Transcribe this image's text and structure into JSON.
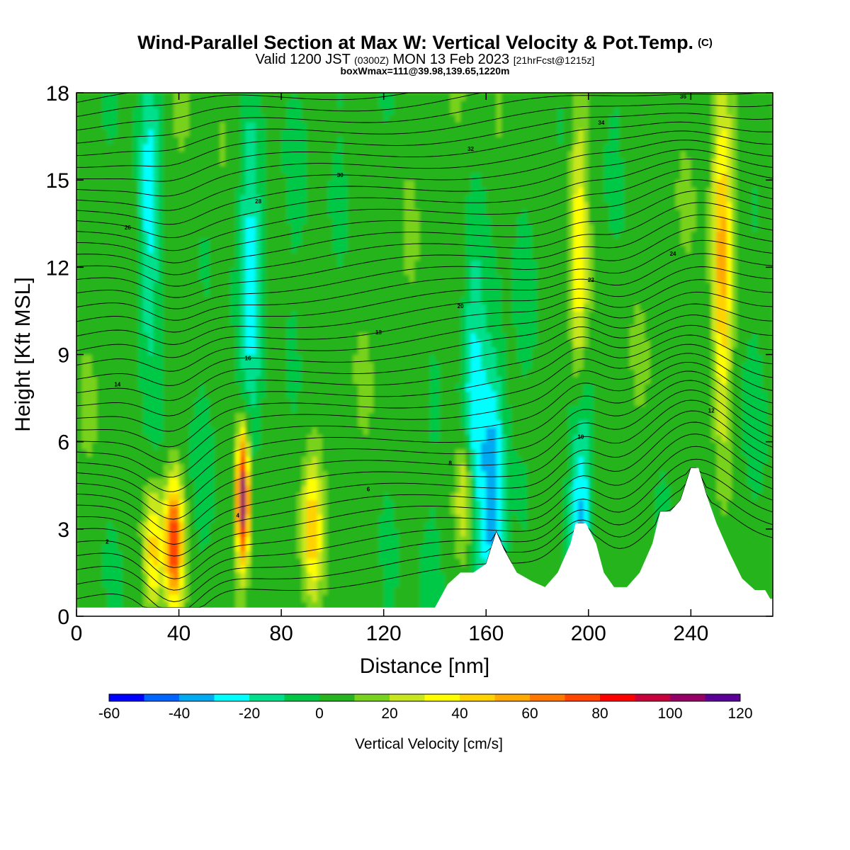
{
  "header": {
    "title": "Wind-Parallel Section at Max W: Vertical Velocity & Pot.Temp.",
    "title_mark": "(C)",
    "valid_prefix": "Valid 1200 JST",
    "valid_zulu": "(0300Z)",
    "valid_date": "MON 13 Feb 2023",
    "forecast_info": "[21hrFcst@1215z]",
    "box_info": "boxWmax=111@39.98,139.65,1220m"
  },
  "chart_data": {
    "type": "heatmap",
    "xlabel": "Distance [nm]",
    "ylabel": "Height [Kft MSL]",
    "xlim": [
      0,
      272
    ],
    "ylim": [
      0,
      18
    ],
    "x_ticks": [
      "0",
      "40",
      "80",
      "120",
      "160",
      "200",
      "240"
    ],
    "y_ticks": [
      "0",
      "3",
      "6",
      "9",
      "12",
      "15",
      "18"
    ],
    "colorbar": {
      "label": "Vertical Velocity [cm/s]",
      "ticks": [
        "-60",
        "-40",
        "-20",
        "0",
        "20",
        "40",
        "60",
        "80",
        "100",
        "120"
      ],
      "min": -60,
      "max": 120,
      "step": 10,
      "colors": [
        "#0000ff",
        "#0064ff",
        "#00aaf0",
        "#00ffff",
        "#00e08c",
        "#00c846",
        "#28b41e",
        "#78d21e",
        "#c8e61e",
        "#ffff00",
        "#ffd200",
        "#ffaa00",
        "#ff7800",
        "#ff4600",
        "#ff0000",
        "#c8003c",
        "#960064",
        "#5a0096"
      ]
    },
    "terrain_kft": [
      [
        0,
        0.3
      ],
      [
        140,
        0.3
      ],
      [
        145,
        1.1
      ],
      [
        150,
        1.5
      ],
      [
        155,
        1.5
      ],
      [
        160,
        1.8
      ],
      [
        164,
        2.9
      ],
      [
        167,
        2.3
      ],
      [
        172,
        1.5
      ],
      [
        178,
        1.2
      ],
      [
        183,
        1.0
      ],
      [
        188,
        1.5
      ],
      [
        193,
        2.5
      ],
      [
        195,
        3.2
      ],
      [
        199,
        3.2
      ],
      [
        203,
        2.5
      ],
      [
        206,
        1.5
      ],
      [
        210,
        1.0
      ],
      [
        215,
        1.0
      ],
      [
        220,
        1.5
      ],
      [
        225,
        2.5
      ],
      [
        228,
        3.6
      ],
      [
        232,
        3.6
      ],
      [
        236,
        4.0
      ],
      [
        240,
        5.1
      ],
      [
        243,
        5.1
      ],
      [
        246,
        4.2
      ],
      [
        250,
        3.2
      ],
      [
        255,
        2.2
      ],
      [
        260,
        1.3
      ],
      [
        265,
        0.9
      ],
      [
        269,
        0.9
      ],
      [
        271,
        0.6
      ],
      [
        272,
        0.6
      ]
    ],
    "updrafts": [
      {
        "x": 30,
        "z": 2.2,
        "value": 45
      },
      {
        "x": 38,
        "z": 2.5,
        "value": 78
      },
      {
        "x": 65,
        "z": 4.0,
        "value": 111
      },
      {
        "x": 92,
        "z": 3.0,
        "value": 40
      },
      {
        "x": 152,
        "z": 4.2,
        "value": 38
      },
      {
        "x": 196,
        "z": 12.0,
        "value": 42
      },
      {
        "x": 252,
        "z": 12.0,
        "value": 48
      }
    ],
    "downdrafts": [
      {
        "x": 28,
        "z": 14.0,
        "value": -30
      },
      {
        "x": 68,
        "z": 12.0,
        "value": -25
      },
      {
        "x": 155,
        "z": 7.0,
        "value": -28
      },
      {
        "x": 163,
        "z": 3.5,
        "value": -40
      },
      {
        "x": 197,
        "z": 3.5,
        "value": -45
      }
    ],
    "theta_labels": [
      "2",
      "4",
      "6",
      "8",
      "10",
      "12",
      "14",
      "16",
      "18",
      "20",
      "22",
      "24",
      "26",
      "28",
      "30",
      "32",
      "34",
      "36"
    ]
  }
}
